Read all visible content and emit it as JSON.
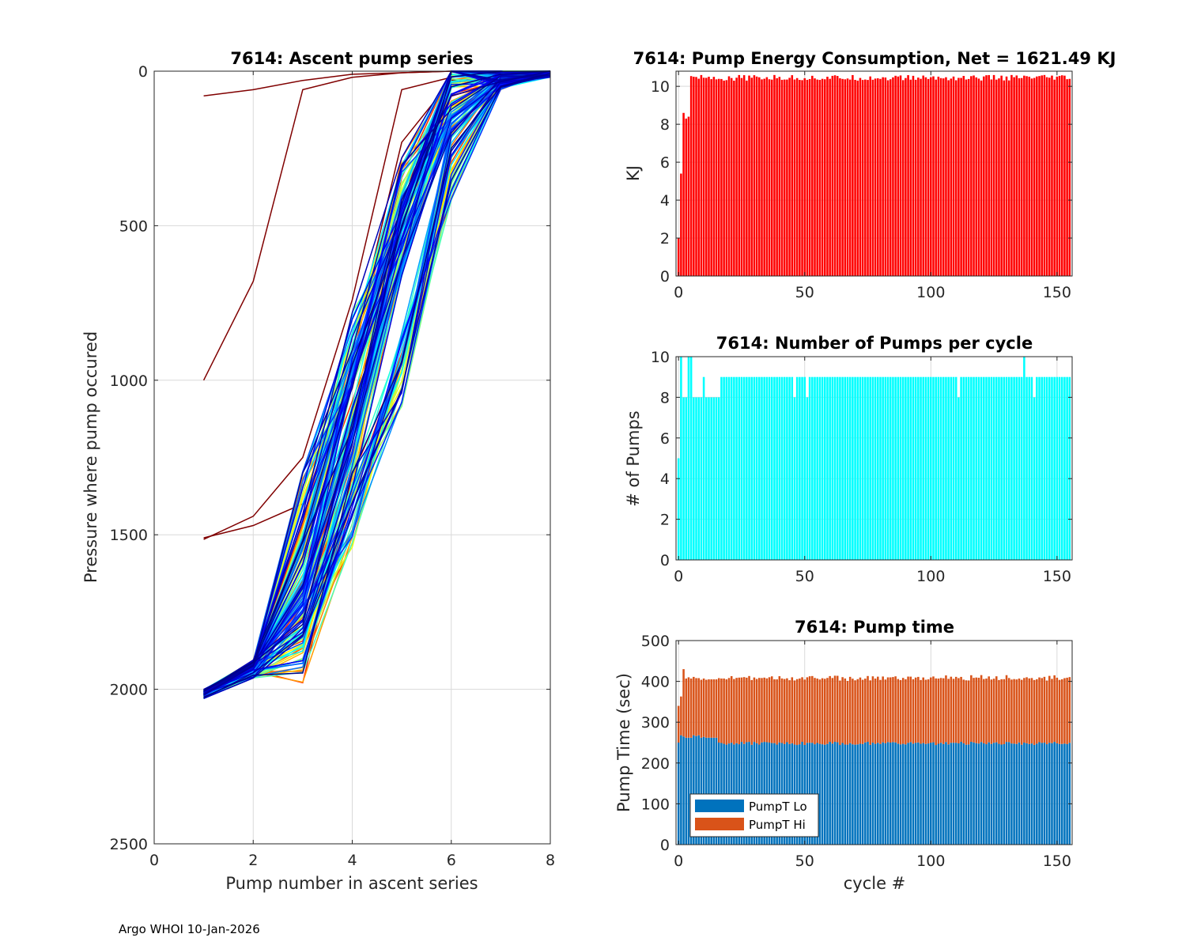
{
  "footer": "Argo WHOI 10-Jan-2026",
  "chart_data": [
    {
      "id": "ascent",
      "type": "line",
      "title": "7614: Ascent pump series",
      "xlabel": "Pump number in ascent series",
      "ylabel": "Pressure where pump occured",
      "xlim": [
        0,
        8
      ],
      "ylim": [
        0,
        2500
      ],
      "y_reversed": true,
      "xticks": [
        0,
        2,
        4,
        6,
        8
      ],
      "yticks": [
        0,
        500,
        1000,
        1500,
        2000,
        2500
      ],
      "grid": true,
      "colormap": "jet",
      "series_count": 157,
      "representative_series": [
        {
          "x": [
            1,
            2,
            3,
            4,
            5,
            6,
            7,
            8
          ],
          "y": [
            2010,
            1920,
            1420,
            900,
            400,
            30,
            5,
            0
          ]
        },
        {
          "x": [
            1,
            2,
            3,
            4,
            5,
            6,
            7,
            8
          ],
          "y": [
            2015,
            1925,
            1600,
            1050,
            520,
            60,
            15,
            0
          ]
        },
        {
          "x": [
            1,
            2,
            3,
            4,
            5,
            6,
            7,
            8
          ],
          "y": [
            2010,
            1920,
            1750,
            1250,
            560,
            70,
            30,
            0
          ]
        },
        {
          "x": [
            1,
            2,
            3,
            4,
            5,
            6,
            7,
            8
          ],
          "y": [
            2020,
            1950,
            1850,
            1420,
            970,
            290,
            40,
            0
          ]
        },
        {
          "x": [
            1,
            2,
            3,
            4,
            5,
            6,
            7,
            8
          ],
          "y": [
            1000,
            680,
            60,
            20,
            5,
            0,
            0,
            0
          ]
        },
        {
          "x": [
            1,
            2,
            3,
            4,
            5,
            6,
            7,
            8
          ],
          "y": [
            80,
            60,
            30,
            10,
            5,
            0,
            0,
            0
          ]
        },
        {
          "x": [
            1,
            2,
            3,
            4,
            5,
            6,
            7,
            8
          ],
          "y": [
            1515,
            1440,
            1250,
            740,
            60,
            20,
            5,
            0
          ]
        },
        {
          "x": [
            1,
            2,
            3,
            4,
            5,
            6,
            7,
            8
          ],
          "y": [
            1510,
            1470,
            1400,
            900,
            230,
            30,
            10,
            0
          ]
        }
      ]
    },
    {
      "id": "energy",
      "type": "bar",
      "title": "7614: Pump Energy Consumption,  Net = 1621.49 KJ",
      "xlabel": "",
      "ylabel": "KJ",
      "xlim": [
        -1,
        156
      ],
      "ylim": [
        0,
        10.8
      ],
      "xticks": [
        0,
        50,
        100,
        150
      ],
      "yticks": [
        0,
        2,
        4,
        6,
        8,
        10
      ],
      "grid": true,
      "color": "#ff0000",
      "first_values": [
        2.0,
        5.4,
        8.6,
        8.3,
        8.4
      ],
      "typical_value": 10.45,
      "cycles": 156
    },
    {
      "id": "pumps",
      "type": "bar",
      "title": "7614: Number of Pumps per cycle",
      "xlabel": "",
      "ylabel": "# of Pumps",
      "xlim": [
        -1,
        156
      ],
      "ylim": [
        0,
        10
      ],
      "xticks": [
        0,
        50,
        100,
        150
      ],
      "yticks": [
        0,
        2,
        4,
        6,
        8,
        10
      ],
      "grid": true,
      "color": "#00ffff",
      "values": [
        5,
        10,
        8,
        8,
        10,
        10,
        8,
        8,
        8,
        8,
        9,
        8,
        8,
        8,
        8,
        8,
        8,
        9,
        9,
        9,
        9,
        9,
        9,
        9,
        9,
        9,
        9,
        9,
        9,
        9,
        9,
        9,
        9,
        9,
        9,
        9,
        9,
        9,
        9,
        9,
        9,
        9,
        9,
        9,
        9,
        9,
        8,
        9,
        9,
        9,
        9,
        8,
        9,
        9,
        9,
        9,
        9,
        9,
        9,
        9,
        9,
        9,
        9,
        9,
        9,
        9,
        9,
        9,
        9,
        9,
        9,
        9,
        9,
        9,
        9,
        9,
        9,
        9,
        9,
        9,
        9,
        9,
        9,
        9,
        9,
        9,
        9,
        9,
        9,
        9,
        9,
        9,
        9,
        9,
        9,
        9,
        9,
        9,
        9,
        9,
        9,
        9,
        9,
        9,
        9,
        9,
        9,
        9,
        9,
        9,
        9,
        8,
        9,
        9,
        9,
        9,
        9,
        9,
        9,
        9,
        9,
        9,
        9,
        9,
        9,
        9,
        9,
        9,
        9,
        9,
        9,
        9,
        9,
        9,
        9,
        9,
        9,
        10,
        9,
        9,
        9,
        8,
        9,
        9,
        9,
        9,
        9,
        9,
        9,
        9,
        9,
        9,
        9,
        9,
        9,
        9
      ]
    },
    {
      "id": "pumptime",
      "type": "bar",
      "stacked": true,
      "title": "7614: Pump time",
      "xlabel": "cycle #",
      "ylabel": "Pump Time (sec)",
      "xlim": [
        -1,
        156
      ],
      "ylim": [
        0,
        500
      ],
      "xticks": [
        0,
        50,
        100,
        150
      ],
      "yticks": [
        0,
        100,
        200,
        300,
        400,
        500
      ],
      "grid": true,
      "legend": "bottom-left",
      "series": [
        {
          "name": "PumpT Lo",
          "color": "#0072bd",
          "first_values": [
            250,
            268,
            265,
            262,
            262,
            262,
            268,
            266,
            268,
            262,
            264,
            262,
            262,
            262,
            262,
            262,
            250,
            249,
            247,
            245
          ],
          "typical_value": 248
        },
        {
          "name": "PumpT Hi",
          "color": "#d95319",
          "first_values": [
            90,
            95,
            165,
            145,
            148,
            145,
            143,
            142,
            140,
            142,
            143,
            142,
            143,
            143,
            143,
            143,
            158,
            158,
            160,
            160
          ],
          "typical_value": 160
        }
      ]
    }
  ]
}
